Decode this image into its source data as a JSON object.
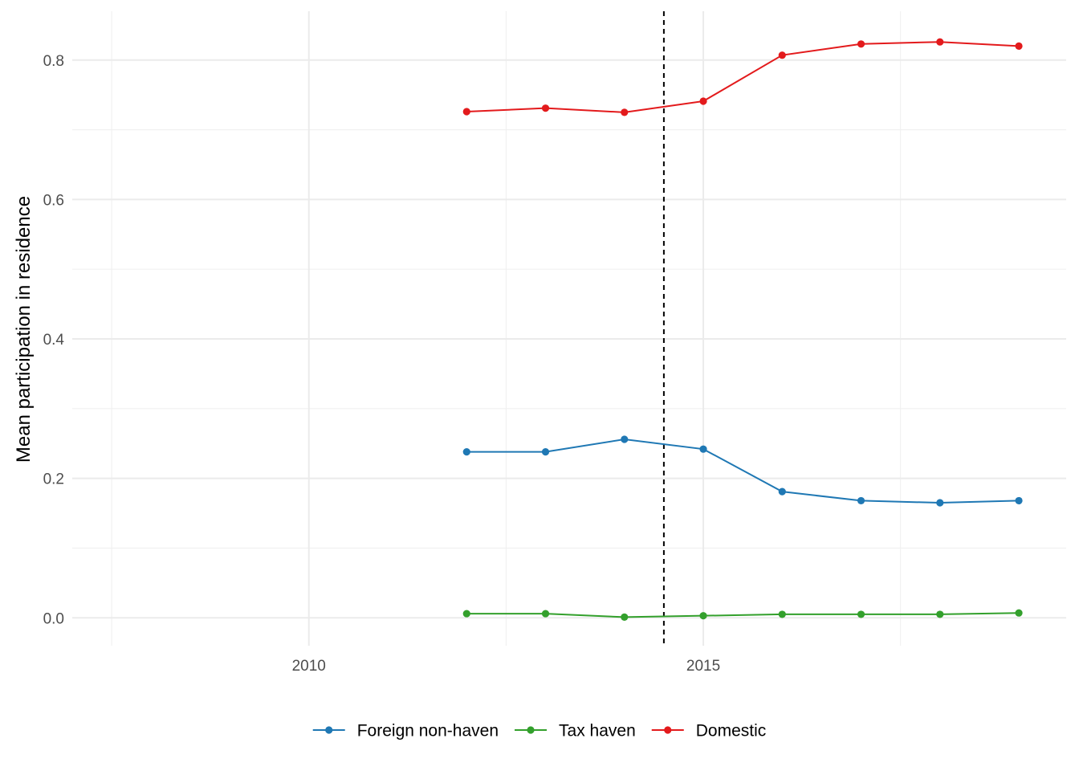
{
  "chart_data": {
    "type": "line",
    "title": "",
    "xlabel": "",
    "ylabel": "Mean participation in residence",
    "xlim": [
      2007,
      2019.6
    ],
    "ylim": [
      -0.04,
      0.87
    ],
    "x_major_ticks": [
      2010,
      2015
    ],
    "x_tick_labels": [
      "2010",
      "2015"
    ],
    "x_minor_ticks": [
      2007.5,
      2012.5,
      2017.5
    ],
    "y_major_ticks": [
      0.0,
      0.2,
      0.4,
      0.6,
      0.8
    ],
    "y_tick_labels": [
      "0.0",
      "0.2",
      "0.4",
      "0.6",
      "0.8"
    ],
    "y_minor_ticks": [
      0.1,
      0.3,
      0.5,
      0.7
    ],
    "grid": true,
    "reference_line": {
      "x": 2014.5,
      "style": "dashed",
      "color": "#000000"
    },
    "legend_position": "bottom",
    "x": [
      2012,
      2013,
      2014,
      2015,
      2016,
      2017,
      2018,
      2019
    ],
    "series": [
      {
        "name": "Foreign non-haven",
        "color": "#1f78b4",
        "values": [
          0.238,
          0.238,
          0.256,
          0.242,
          0.181,
          0.168,
          0.165,
          0.168
        ]
      },
      {
        "name": "Tax haven",
        "color": "#33a02c",
        "values": [
          0.006,
          0.006,
          0.001,
          0.003,
          0.005,
          0.005,
          0.005,
          0.007
        ]
      },
      {
        "name": "Domestic",
        "color": "#e31a1c",
        "values": [
          0.726,
          0.731,
          0.725,
          0.741,
          0.807,
          0.823,
          0.826,
          0.82
        ]
      }
    ]
  }
}
